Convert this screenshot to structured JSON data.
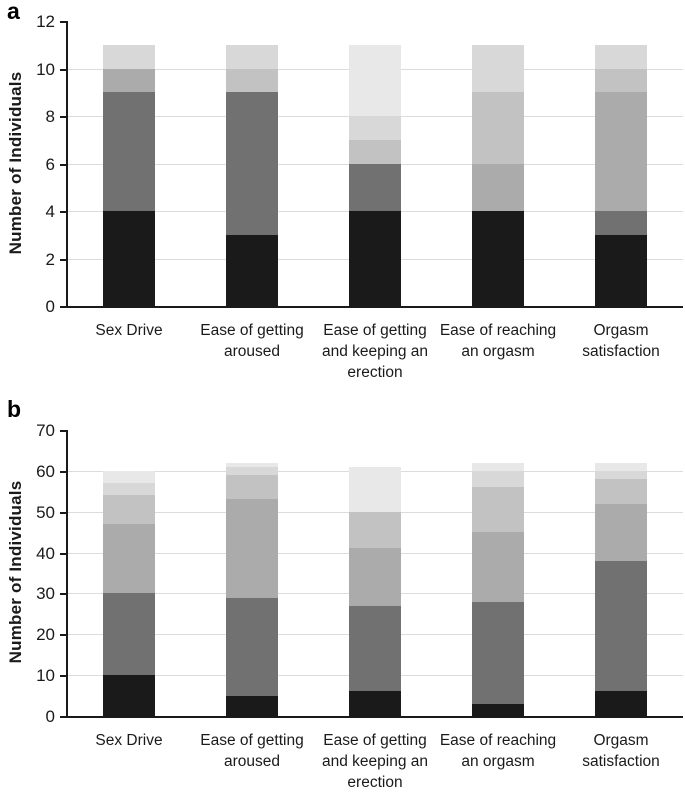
{
  "chart_data": [
    {
      "id": "panel-a",
      "type": "bar",
      "stacked": true,
      "panel_label": "a",
      "ylabel": "Number of Individuals",
      "xlabel": "",
      "ylim": [
        0,
        12
      ],
      "yticks": [
        0,
        2,
        4,
        6,
        8,
        10,
        12
      ],
      "grid": true,
      "legend": "none",
      "categories": [
        "Sex Drive",
        "Ease of getting aroused",
        "Ease of getting and keeping an erection",
        "Ease of reaching an orgasm",
        "Orgasm satisfaction"
      ],
      "totals": [
        11,
        11,
        11,
        11,
        11
      ],
      "series": [
        {
          "name": "black",
          "color": "#1a1a1a",
          "values": [
            4,
            3,
            4,
            4,
            3
          ]
        },
        {
          "name": "dark-gray",
          "color": "#717171",
          "values": [
            5,
            6,
            2,
            0,
            1
          ]
        },
        {
          "name": "medium-gray",
          "color": "#ababab",
          "values": [
            1,
            0,
            0,
            2,
            5
          ]
        },
        {
          "name": "silver",
          "color": "#c2c2c2",
          "values": [
            0,
            1,
            1,
            3,
            1
          ]
        },
        {
          "name": "light-gray",
          "color": "#d8d8d8",
          "values": [
            1,
            1,
            1,
            2,
            1
          ]
        },
        {
          "name": "lightest-gray",
          "color": "#e8e8e8",
          "values": [
            0,
            0,
            3,
            0,
            0
          ]
        }
      ]
    },
    {
      "id": "panel-b",
      "type": "bar",
      "stacked": true,
      "panel_label": "b",
      "ylabel": "Number of Individuals",
      "xlabel": "",
      "ylim": [
        0,
        70
      ],
      "yticks": [
        0,
        10,
        20,
        30,
        40,
        50,
        60,
        70
      ],
      "grid": true,
      "legend": "none",
      "categories": [
        "Sex Drive",
        "Ease of getting aroused",
        "Ease of getting and keeping an erection",
        "Ease of reaching an orgasm",
        "Orgasm satisfaction"
      ],
      "totals": [
        60,
        62,
        61,
        62,
        62
      ],
      "series": [
        {
          "name": "black",
          "color": "#1a1a1a",
          "values": [
            10,
            5,
            6,
            3,
            6
          ]
        },
        {
          "name": "dark-gray",
          "color": "#717171",
          "values": [
            20,
            24,
            21,
            25,
            32
          ]
        },
        {
          "name": "medium-gray",
          "color": "#ababab",
          "values": [
            17,
            24,
            14,
            17,
            14
          ]
        },
        {
          "name": "silver",
          "color": "#c2c2c2",
          "values": [
            7,
            6,
            9,
            11,
            6
          ]
        },
        {
          "name": "light-gray",
          "color": "#d8d8d8",
          "values": [
            3,
            2,
            0,
            4,
            2
          ]
        },
        {
          "name": "lightest-gray",
          "color": "#e8e8e8",
          "values": [
            3,
            1,
            11,
            2,
            2
          ]
        }
      ]
    }
  ]
}
